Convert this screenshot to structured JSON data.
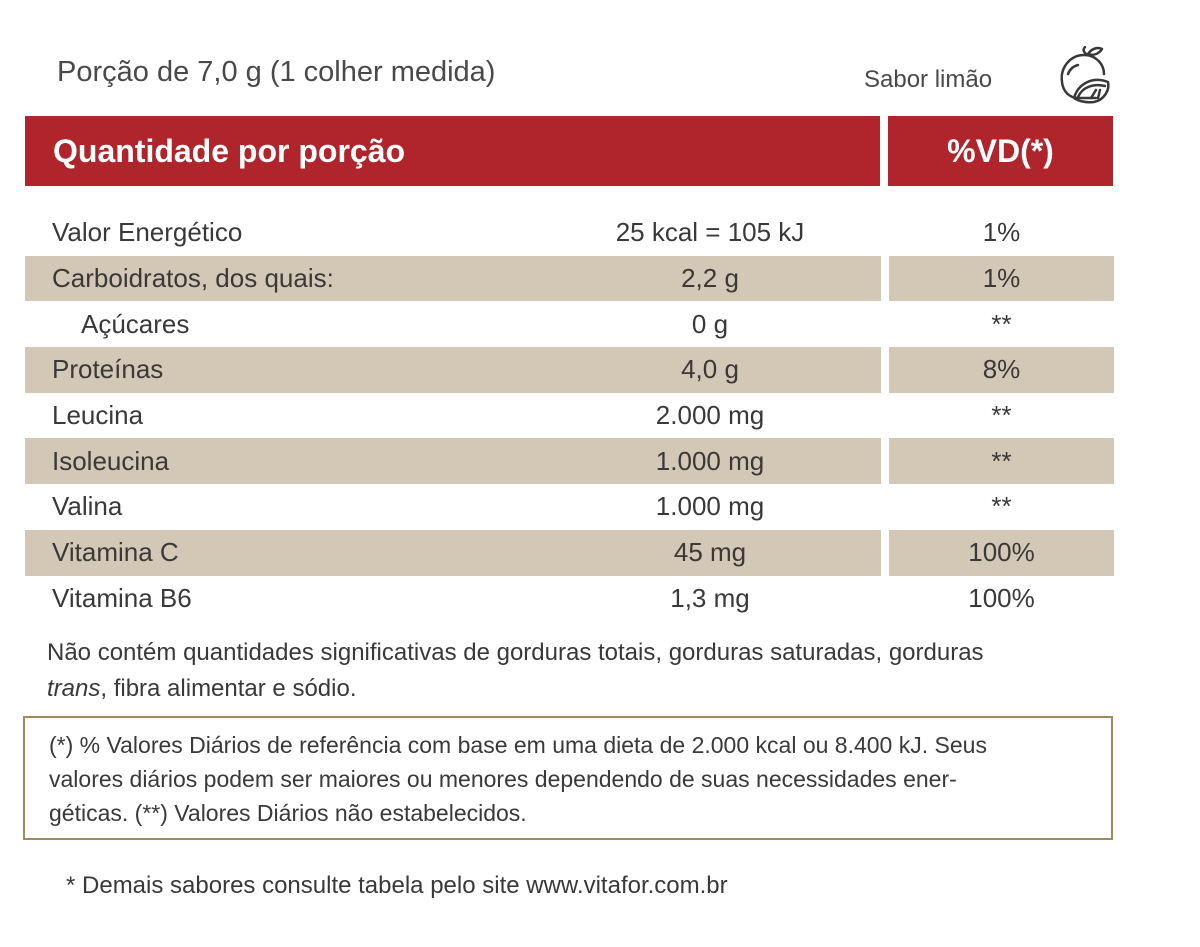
{
  "header": {
    "serving": "Porção de 7,0 g (1 colher medida)",
    "flavor": "Sabor limão",
    "icon": "lemon-icon"
  },
  "table": {
    "col_quantity": "Quantidade por porção",
    "col_vd": "%VD(*)",
    "rows": [
      {
        "name": "Valor Energético",
        "amount": "25 kcal = 105 kJ",
        "vd": "1%"
      },
      {
        "name": "Carboidratos, dos quais:",
        "amount": "2,2 g",
        "vd": "1%"
      },
      {
        "name": "Açúcares",
        "amount": "0 g",
        "vd": "**"
      },
      {
        "name": "Proteínas",
        "amount": "4,0 g",
        "vd": "8%"
      },
      {
        "name": "Leucina",
        "amount": "2.000 mg",
        "vd": "**"
      },
      {
        "name": "Isoleucina",
        "amount": "1.000 mg",
        "vd": "**"
      },
      {
        "name": "Valina",
        "amount": "1.000 mg",
        "vd": "**"
      },
      {
        "name": "Vitamina C",
        "amount": "45 mg",
        "vd": "100%"
      },
      {
        "name": "Vitamina B6",
        "amount": "1,3 mg",
        "vd": "100%"
      }
    ]
  },
  "notes": {
    "not_contains_pre": "Não contém quantidades significativas de gorduras totais, gorduras saturadas, gorduras",
    "not_contains_italic": "trans",
    "not_contains_post": ", fibra alimentar e sódio.",
    "reference_line1": "(*) % Valores Diários de referência com base em uma dieta de 2.000 kcal ou 8.400 kJ. Seus",
    "reference_line2": "valores diários podem ser maiores ou menores dependendo de suas necessidades ener-",
    "reference_line3": "géticas. (**) Valores Diários não estabelecidos.",
    "website": "* Demais sabores consulte tabela pelo site www.vitafor.com.br"
  },
  "colors": {
    "header_red": "#b0252c",
    "row_shade": "#d2c8b5",
    "box_border": "#a0895b"
  }
}
